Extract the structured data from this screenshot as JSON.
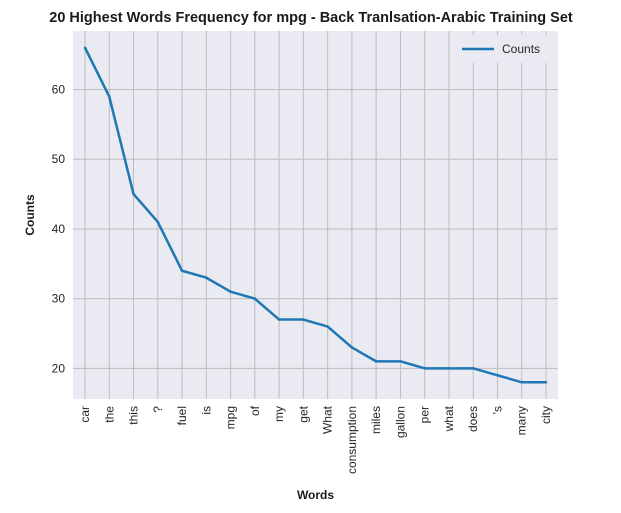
{
  "chart_data": {
    "type": "line",
    "title": "20 Highest Words Frequency for mpg - Back Tranlsation-Arabic Training Set",
    "xlabel": "Words",
    "ylabel": "Counts",
    "categories": [
      "car",
      "the",
      "this",
      "?",
      "fuel",
      "is",
      "mpg",
      "of",
      "my",
      "get",
      "What",
      "consumption",
      "miles",
      "gallon",
      "per",
      "what",
      "does",
      "'s",
      "many",
      "city"
    ],
    "series": [
      {
        "name": "Counts",
        "values": [
          66,
          59,
          45,
          41,
          34,
          33,
          31,
          30,
          27,
          27,
          26,
          23,
          21,
          21,
          20,
          20,
          20,
          19,
          18,
          18
        ],
        "color": "#1f77b4"
      }
    ],
    "ylim": [
      15.6,
      68.4
    ],
    "yticks": [
      20,
      30,
      40,
      50,
      60
    ],
    "grid": true,
    "legend_position": "top-right",
    "colors": {
      "plot_background": "#eaeaf2",
      "grid": "#bdbdbd",
      "line": "#1f77b4"
    }
  }
}
